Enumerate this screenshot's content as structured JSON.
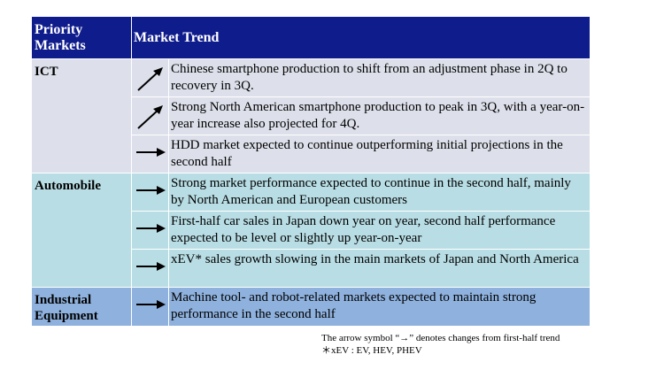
{
  "header": {
    "priority_markets": "Priority\nMarkets",
    "market_trend": "Market Trend"
  },
  "categories": {
    "ict": "ICT",
    "automobile": "Automobile",
    "industrial": "Industrial\nEquipment"
  },
  "rows": [
    {
      "arrow": "up-right-arrow-icon",
      "text": "Chinese smartphone production to shift from an adjustment phase in 2Q to recovery in 3Q."
    },
    {
      "arrow": "up-right-arrow-icon",
      "text": "Strong North American smartphone production to peak in 3Q, with a year-on-year increase also projected for 4Q."
    },
    {
      "arrow": "right-arrow-icon",
      "text": "HDD market expected to continue outperforming initial projections in the second half"
    },
    {
      "arrow": "right-arrow-icon",
      "text": "Strong market performance expected to continue in the second half, mainly by North American and European customers"
    },
    {
      "arrow": "right-arrow-icon",
      "text": "First-half car sales in Japan down year on year, second half performance expected to be level or slightly up year-on-year"
    },
    {
      "arrow": "right-arrow-icon",
      "text": "xEV* sales growth slowing in the main markets of Japan and North America"
    },
    {
      "arrow": "right-arrow-icon",
      "text": "Machine tool- and robot-related markets expected to maintain strong performance in the second half"
    }
  ],
  "footnotes": {
    "arrow_note": "The arrow symbol “→” denotes changes from first-half trend",
    "xev_note": "＊xEV : EV, HEV, PHEV"
  },
  "colors": {
    "header_bg": "#0f1c8c",
    "ict_bg": "#dde0ea",
    "automobile_bg": "#b8dde4",
    "industrial_bg": "#8eb1dd"
  }
}
